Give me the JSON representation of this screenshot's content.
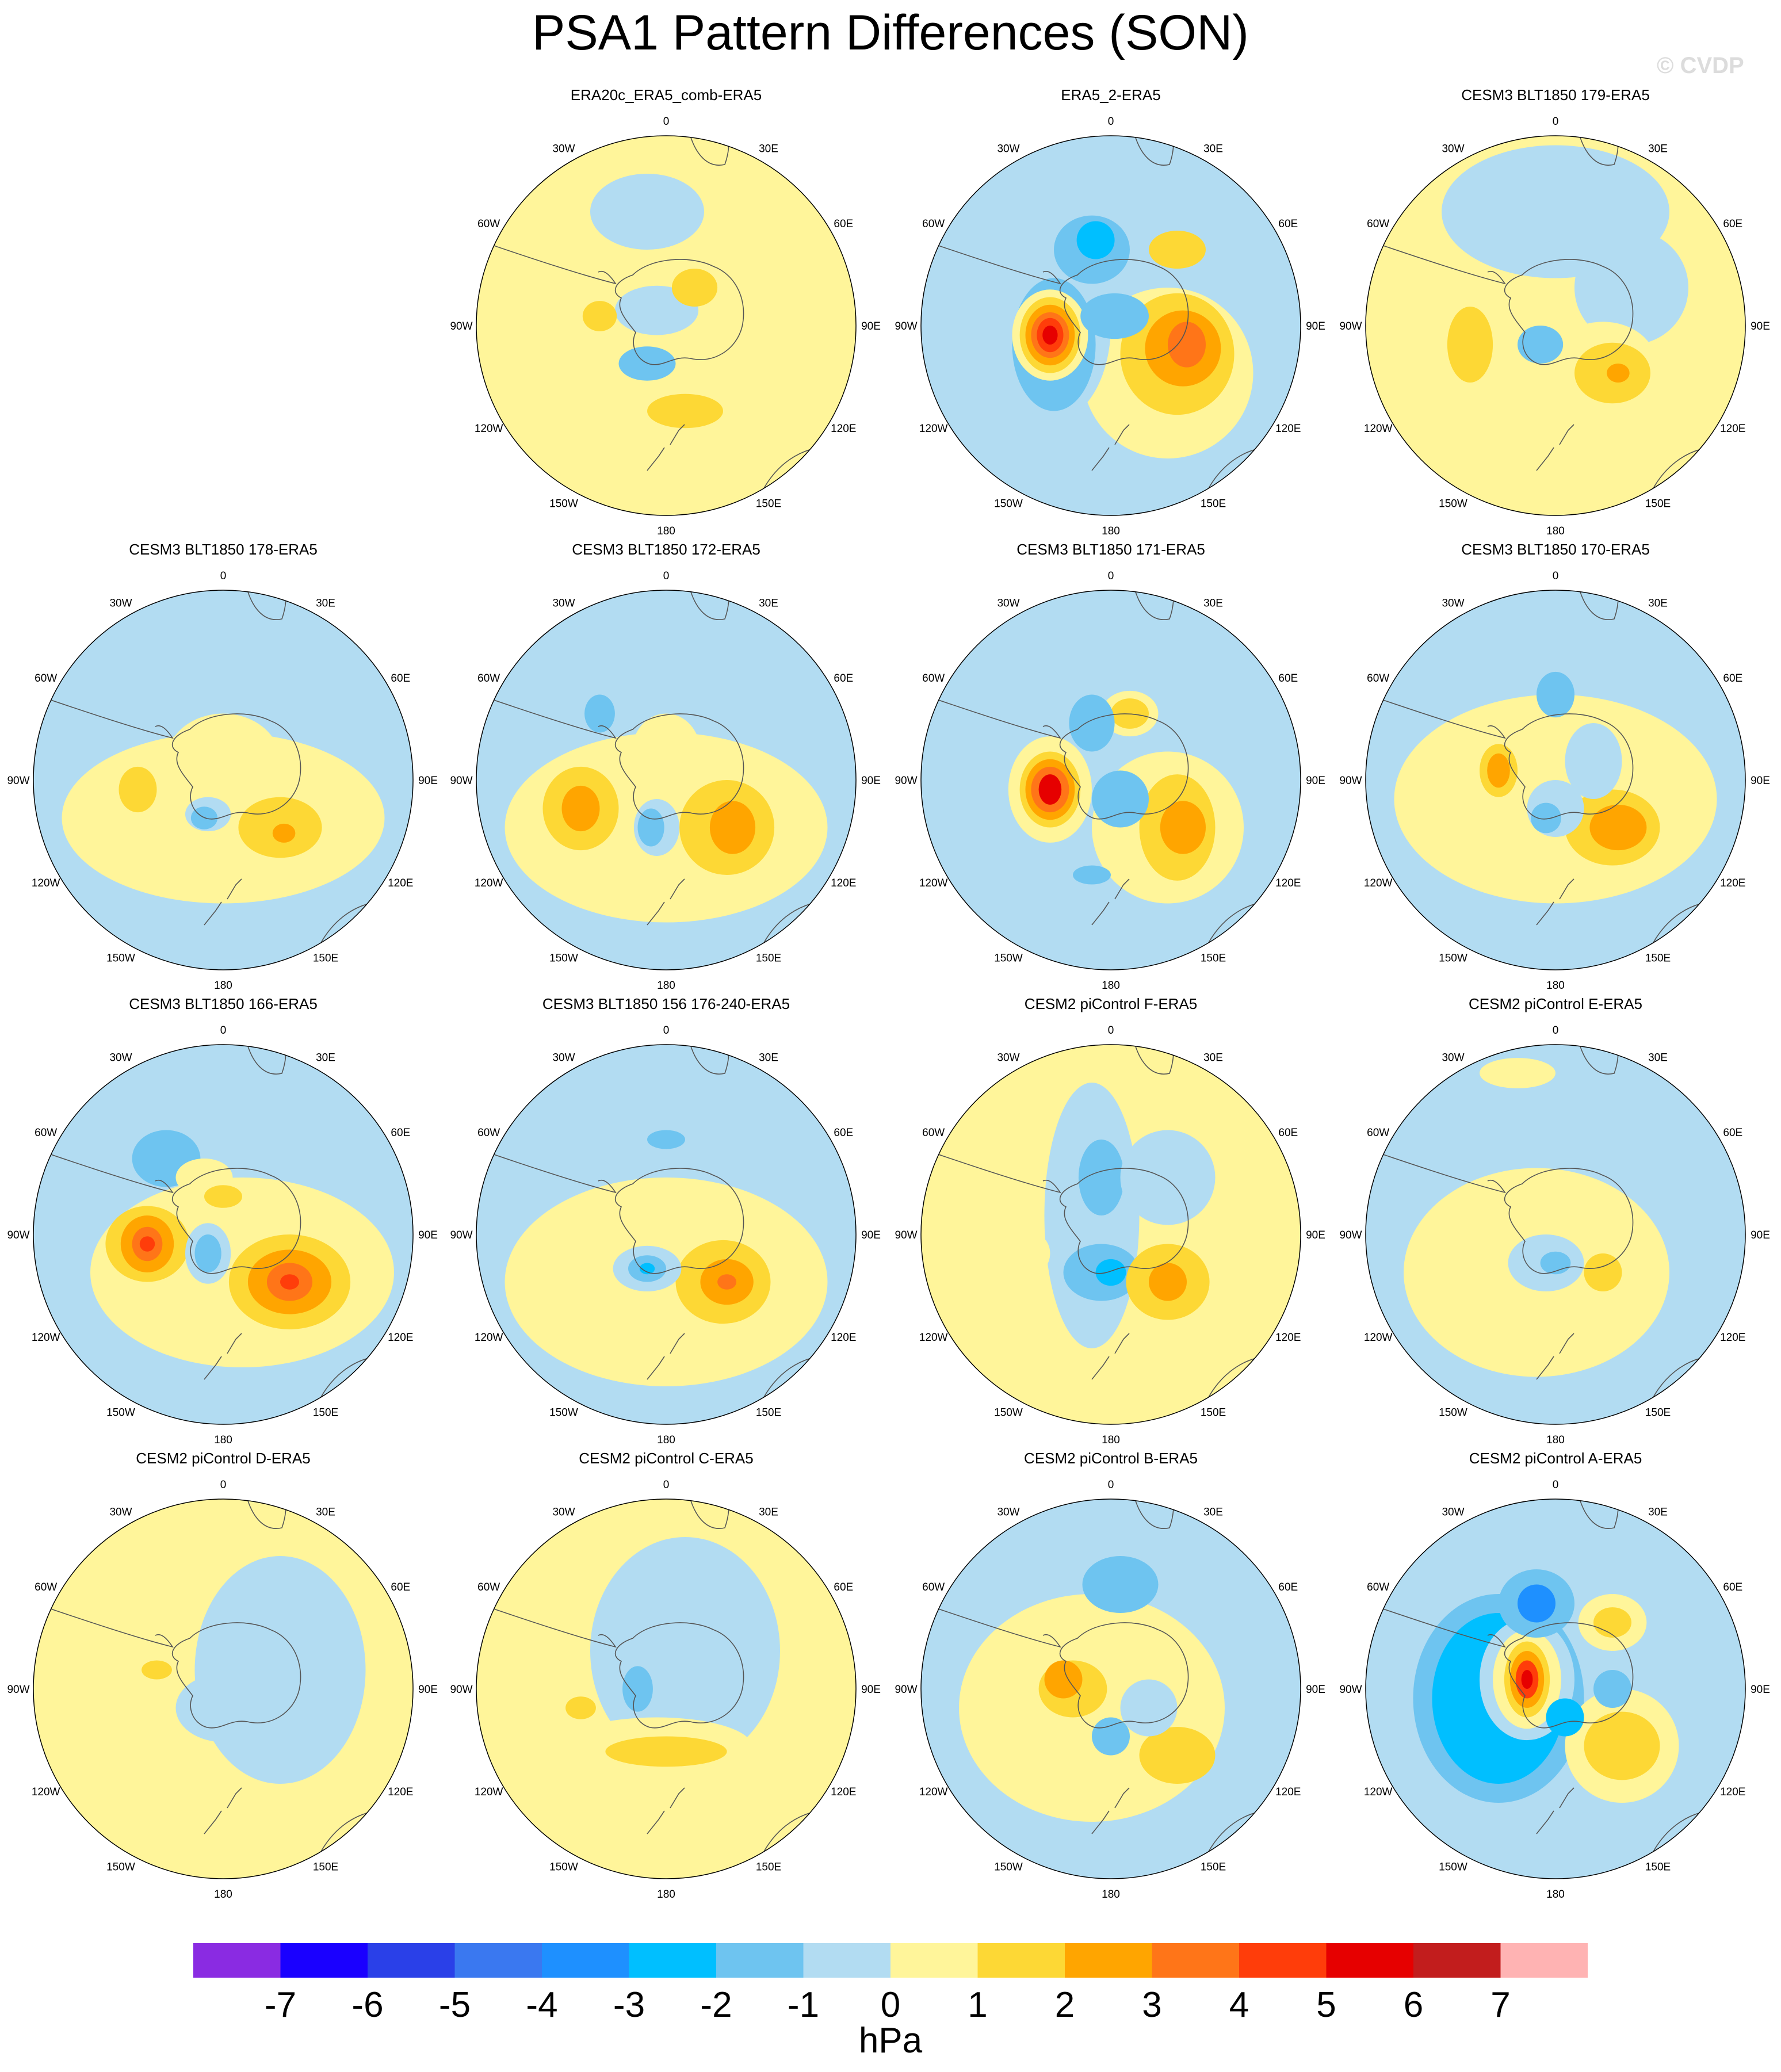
{
  "title": "PSA1 Pattern Differences (SON)",
  "watermark": "© CVDP",
  "units": "hPa",
  "longitude_labels": [
    "0",
    "30E",
    "60E",
    "90E",
    "120E",
    "150E",
    "180",
    "150W",
    "120W",
    "90W",
    "60W",
    "30W"
  ],
  "colorbar": {
    "colors": [
      "#8a2be2",
      "#1a00ff",
      "#2a40e8",
      "#3a78f0",
      "#1e90ff",
      "#00bfff",
      "#6ec4f0",
      "#b2dcf2",
      "#fff59a",
      "#fdd835",
      "#ffa500",
      "#ff7518",
      "#ff3d0a",
      "#e60000",
      "#c21d1d",
      "#ffb3b3"
    ],
    "labels": [
      "-7",
      "-6",
      "-5",
      "-4",
      "-3",
      "-2",
      "-1",
      "0",
      "1",
      "2",
      "3",
      "4",
      "5",
      "6",
      "7"
    ]
  },
  "colors": {
    "ocean_neutral": "#fff59a",
    "coast": "#555555"
  },
  "panels": [
    {
      "title": "ERA20c_ERA5_comb-ERA5",
      "base": "y",
      "blobs": [
        {
          "dx": -0.05,
          "dy": -0.08,
          "rx": 0.22,
          "ry": 0.13,
          "v": -1
        },
        {
          "dx": -0.1,
          "dy": 0.2,
          "rx": 0.15,
          "ry": 0.09,
          "v": -2
        },
        {
          "dx": 0.15,
          "dy": -0.2,
          "rx": 0.12,
          "ry": 0.1,
          "v": 2
        },
        {
          "dx": -0.35,
          "dy": -0.05,
          "rx": 0.09,
          "ry": 0.08,
          "v": 2
        },
        {
          "dx": 0.1,
          "dy": 0.45,
          "rx": 0.2,
          "ry": 0.09,
          "v": 2
        },
        {
          "dx": -0.1,
          "dy": -0.6,
          "rx": 0.3,
          "ry": 0.2,
          "v": -1
        }
      ]
    },
    {
      "title": "ERA5_2-ERA5",
      "base": "b",
      "blobs": [
        {
          "dx": 0.3,
          "dy": 0.25,
          "rx": 0.45,
          "ry": 0.45,
          "v": 1
        },
        {
          "dx": 0.35,
          "dy": 0.15,
          "rx": 0.3,
          "ry": 0.32,
          "v": 2
        },
        {
          "dx": 0.38,
          "dy": 0.12,
          "rx": 0.2,
          "ry": 0.2,
          "v": 3
        },
        {
          "dx": 0.4,
          "dy": 0.1,
          "rx": 0.1,
          "ry": 0.12,
          "v": 4
        },
        {
          "dx": -0.3,
          "dy": 0.0,
          "rx": 0.3,
          "ry": 0.5,
          "v": -1
        },
        {
          "dx": -0.3,
          "dy": 0.1,
          "rx": 0.22,
          "ry": 0.35,
          "v": -2
        },
        {
          "dx": -0.32,
          "dy": 0.05,
          "rx": 0.2,
          "ry": 0.24,
          "v": 1
        },
        {
          "dx": -0.32,
          "dy": 0.05,
          "rx": 0.16,
          "ry": 0.2,
          "v": 2
        },
        {
          "dx": -0.32,
          "dy": 0.05,
          "rx": 0.13,
          "ry": 0.16,
          "v": 3
        },
        {
          "dx": -0.32,
          "dy": 0.05,
          "rx": 0.1,
          "ry": 0.12,
          "v": 4
        },
        {
          "dx": -0.32,
          "dy": 0.05,
          "rx": 0.07,
          "ry": 0.09,
          "v": 5
        },
        {
          "dx": -0.32,
          "dy": 0.05,
          "rx": 0.04,
          "ry": 0.05,
          "v": 6
        },
        {
          "dx": -0.1,
          "dy": -0.4,
          "rx": 0.2,
          "ry": 0.18,
          "v": -2
        },
        {
          "dx": -0.08,
          "dy": -0.45,
          "rx": 0.1,
          "ry": 0.1,
          "v": -3
        },
        {
          "dx": 0.35,
          "dy": -0.4,
          "rx": 0.15,
          "ry": 0.1,
          "v": 2
        },
        {
          "dx": 0.02,
          "dy": -0.05,
          "rx": 0.18,
          "ry": 0.12,
          "v": -2
        }
      ]
    },
    {
      "title": "CESM3 BLT1850 179-ERA5",
      "base": "y",
      "blobs": [
        {
          "dx": 0.0,
          "dy": -0.6,
          "rx": 0.6,
          "ry": 0.35,
          "v": -1
        },
        {
          "dx": 0.4,
          "dy": -0.2,
          "rx": 0.3,
          "ry": 0.3,
          "v": -1
        },
        {
          "dx": 0.25,
          "dy": 0.2,
          "rx": 0.28,
          "ry": 0.22,
          "v": 1
        },
        {
          "dx": 0.3,
          "dy": 0.25,
          "rx": 0.2,
          "ry": 0.16,
          "v": 2
        },
        {
          "dx": 0.33,
          "dy": 0.25,
          "rx": 0.06,
          "ry": 0.05,
          "v": 3
        },
        {
          "dx": -0.08,
          "dy": 0.1,
          "rx": 0.12,
          "ry": 0.1,
          "v": -2
        },
        {
          "dx": -0.45,
          "dy": 0.1,
          "rx": 0.12,
          "ry": 0.2,
          "v": 2
        }
      ]
    },
    {
      "title": "CESM3 BLT1850 178-ERA5",
      "base": "b",
      "blobs": [
        {
          "dx": 0.0,
          "dy": 0.2,
          "rx": 0.85,
          "ry": 0.45,
          "v": 1
        },
        {
          "dx": 0.0,
          "dy": -0.1,
          "rx": 0.3,
          "ry": 0.25,
          "v": 1
        },
        {
          "dx": 0.3,
          "dy": 0.25,
          "rx": 0.22,
          "ry": 0.16,
          "v": 2
        },
        {
          "dx": 0.32,
          "dy": 0.28,
          "rx": 0.06,
          "ry": 0.05,
          "v": 3
        },
        {
          "dx": -0.45,
          "dy": 0.05,
          "rx": 0.1,
          "ry": 0.12,
          "v": 2
        },
        {
          "dx": -0.08,
          "dy": 0.18,
          "rx": 0.12,
          "ry": 0.09,
          "v": -1
        },
        {
          "dx": -0.1,
          "dy": 0.2,
          "rx": 0.07,
          "ry": 0.06,
          "v": -2
        }
      ]
    },
    {
      "title": "CESM3 BLT1850 172-ERA5",
      "base": "b",
      "blobs": [
        {
          "dx": 0.0,
          "dy": 0.25,
          "rx": 0.85,
          "ry": 0.5,
          "v": 1
        },
        {
          "dx": 0.0,
          "dy": -0.15,
          "rx": 0.18,
          "ry": 0.2,
          "v": 1
        },
        {
          "dx": 0.32,
          "dy": 0.25,
          "rx": 0.25,
          "ry": 0.25,
          "v": 2
        },
        {
          "dx": 0.35,
          "dy": 0.25,
          "rx": 0.12,
          "ry": 0.14,
          "v": 3
        },
        {
          "dx": -0.45,
          "dy": 0.15,
          "rx": 0.2,
          "ry": 0.22,
          "v": 2
        },
        {
          "dx": -0.45,
          "dy": 0.15,
          "rx": 0.1,
          "ry": 0.12,
          "v": 3
        },
        {
          "dx": -0.05,
          "dy": 0.25,
          "rx": 0.12,
          "ry": 0.15,
          "v": -1
        },
        {
          "dx": -0.08,
          "dy": 0.25,
          "rx": 0.07,
          "ry": 0.1,
          "v": -2
        },
        {
          "dx": -0.35,
          "dy": -0.35,
          "rx": 0.08,
          "ry": 0.1,
          "v": -2
        }
      ]
    },
    {
      "title": "CESM3 BLT1850 171-ERA5",
      "base": "b",
      "blobs": [
        {
          "dx": 0.3,
          "dy": 0.25,
          "rx": 0.4,
          "ry": 0.4,
          "v": 1
        },
        {
          "dx": 0.35,
          "dy": 0.25,
          "rx": 0.2,
          "ry": 0.28,
          "v": 2
        },
        {
          "dx": 0.38,
          "dy": 0.25,
          "rx": 0.12,
          "ry": 0.14,
          "v": 3
        },
        {
          "dx": -0.32,
          "dy": 0.05,
          "rx": 0.22,
          "ry": 0.28,
          "v": 1
        },
        {
          "dx": -0.32,
          "dy": 0.05,
          "rx": 0.16,
          "ry": 0.2,
          "v": 2
        },
        {
          "dx": -0.32,
          "dy": 0.05,
          "rx": 0.13,
          "ry": 0.16,
          "v": 3
        },
        {
          "dx": -0.32,
          "dy": 0.05,
          "rx": 0.1,
          "ry": 0.12,
          "v": 4
        },
        {
          "dx": -0.32,
          "dy": 0.05,
          "rx": 0.06,
          "ry": 0.08,
          "v": 6
        },
        {
          "dx": 0.1,
          "dy": -0.35,
          "rx": 0.15,
          "ry": 0.12,
          "v": 1
        },
        {
          "dx": 0.1,
          "dy": -0.35,
          "rx": 0.1,
          "ry": 0.08,
          "v": 2
        },
        {
          "dx": -0.1,
          "dy": -0.3,
          "rx": 0.12,
          "ry": 0.15,
          "v": -2
        },
        {
          "dx": 0.05,
          "dy": 0.1,
          "rx": 0.15,
          "ry": 0.15,
          "v": -2
        },
        {
          "dx": -0.1,
          "dy": 0.5,
          "rx": 0.1,
          "ry": 0.05,
          "v": -2
        }
      ]
    },
    {
      "title": "CESM3 BLT1850 170-ERA5",
      "base": "b",
      "blobs": [
        {
          "dx": 0.0,
          "dy": 0.1,
          "rx": 0.85,
          "ry": 0.55,
          "v": 1
        },
        {
          "dx": 0.3,
          "dy": 0.25,
          "rx": 0.25,
          "ry": 0.2,
          "v": 2
        },
        {
          "dx": 0.33,
          "dy": 0.25,
          "rx": 0.15,
          "ry": 0.12,
          "v": 3
        },
        {
          "dx": -0.3,
          "dy": -0.05,
          "rx": 0.15,
          "ry": 0.2,
          "v": 1
        },
        {
          "dx": -0.3,
          "dy": -0.05,
          "rx": 0.1,
          "ry": 0.14,
          "v": 2
        },
        {
          "dx": -0.3,
          "dy": -0.05,
          "rx": 0.06,
          "ry": 0.09,
          "v": 3
        },
        {
          "dx": 0.0,
          "dy": 0.15,
          "rx": 0.15,
          "ry": 0.15,
          "v": -1
        },
        {
          "dx": -0.05,
          "dy": 0.2,
          "rx": 0.08,
          "ry": 0.08,
          "v": -2
        },
        {
          "dx": 0.0,
          "dy": -0.45,
          "rx": 0.1,
          "ry": 0.12,
          "v": -2
        },
        {
          "dx": 0.2,
          "dy": -0.1,
          "rx": 0.15,
          "ry": 0.2,
          "v": -1
        }
      ]
    },
    {
      "title": "CESM3 BLT1850 166-ERA5",
      "base": "b",
      "blobs": [
        {
          "dx": 0.1,
          "dy": 0.2,
          "rx": 0.8,
          "ry": 0.5,
          "v": 1
        },
        {
          "dx": 0.35,
          "dy": 0.25,
          "rx": 0.32,
          "ry": 0.25,
          "v": 2
        },
        {
          "dx": 0.35,
          "dy": 0.25,
          "rx": 0.22,
          "ry": 0.17,
          "v": 3
        },
        {
          "dx": 0.35,
          "dy": 0.25,
          "rx": 0.12,
          "ry": 0.1,
          "v": 4
        },
        {
          "dx": 0.35,
          "dy": 0.25,
          "rx": 0.05,
          "ry": 0.04,
          "v": 5
        },
        {
          "dx": -0.4,
          "dy": 0.05,
          "rx": 0.22,
          "ry": 0.2,
          "v": 2
        },
        {
          "dx": -0.4,
          "dy": 0.05,
          "rx": 0.14,
          "ry": 0.15,
          "v": 3
        },
        {
          "dx": -0.4,
          "dy": 0.05,
          "rx": 0.08,
          "ry": 0.09,
          "v": 4
        },
        {
          "dx": -0.4,
          "dy": 0.05,
          "rx": 0.04,
          "ry": 0.04,
          "v": 5
        },
        {
          "dx": -0.08,
          "dy": 0.1,
          "rx": 0.12,
          "ry": 0.16,
          "v": -1
        },
        {
          "dx": -0.08,
          "dy": 0.1,
          "rx": 0.07,
          "ry": 0.1,
          "v": -2
        },
        {
          "dx": -0.3,
          "dy": -0.4,
          "rx": 0.18,
          "ry": 0.15,
          "v": -2
        },
        {
          "dx": -0.1,
          "dy": -0.3,
          "rx": 0.15,
          "ry": 0.1,
          "v": 1
        },
        {
          "dx": 0.0,
          "dy": -0.2,
          "rx": 0.1,
          "ry": 0.06,
          "v": 2
        }
      ]
    },
    {
      "title": "CESM3 BLT1850 156 176-240-ERA5",
      "base": "b",
      "blobs": [
        {
          "dx": 0.0,
          "dy": 0.25,
          "rx": 0.85,
          "ry": 0.55,
          "v": 1
        },
        {
          "dx": 0.3,
          "dy": 0.25,
          "rx": 0.25,
          "ry": 0.22,
          "v": 2
        },
        {
          "dx": 0.32,
          "dy": 0.25,
          "rx": 0.14,
          "ry": 0.12,
          "v": 3
        },
        {
          "dx": 0.32,
          "dy": 0.25,
          "rx": 0.05,
          "ry": 0.04,
          "v": 4
        },
        {
          "dx": -0.1,
          "dy": 0.18,
          "rx": 0.18,
          "ry": 0.12,
          "v": -1
        },
        {
          "dx": -0.1,
          "dy": 0.18,
          "rx": 0.1,
          "ry": 0.07,
          "v": -2
        },
        {
          "dx": -0.1,
          "dy": 0.18,
          "rx": 0.04,
          "ry": 0.03,
          "v": -3
        },
        {
          "dx": 0.0,
          "dy": -0.5,
          "rx": 0.1,
          "ry": 0.05,
          "v": -2
        },
        {
          "dx": -0.2,
          "dy": -0.2,
          "rx": 0.1,
          "ry": 0.08,
          "v": 1
        }
      ]
    },
    {
      "title": "CESM2 piControl F-ERA5",
      "base": "y",
      "blobs": [
        {
          "dx": -0.1,
          "dy": -0.1,
          "rx": 0.25,
          "ry": 0.7,
          "v": -1
        },
        {
          "dx": -0.05,
          "dy": -0.3,
          "rx": 0.12,
          "ry": 0.2,
          "v": -2
        },
        {
          "dx": -0.05,
          "dy": 0.2,
          "rx": 0.2,
          "ry": 0.15,
          "v": -2
        },
        {
          "dx": 0.0,
          "dy": 0.2,
          "rx": 0.08,
          "ry": 0.07,
          "v": -3
        },
        {
          "dx": 0.3,
          "dy": -0.3,
          "rx": 0.25,
          "ry": 0.25,
          "v": -1
        },
        {
          "dx": 0.3,
          "dy": 0.25,
          "rx": 0.22,
          "ry": 0.2,
          "v": 2
        },
        {
          "dx": 0.3,
          "dy": 0.25,
          "rx": 0.1,
          "ry": 0.1,
          "v": 3
        },
        {
          "dx": -0.4,
          "dy": 0.1,
          "rx": 0.08,
          "ry": 0.1,
          "v": 1
        }
      ]
    },
    {
      "title": "CESM2 piControl E-ERA5",
      "base": "b",
      "blobs": [
        {
          "dx": -0.1,
          "dy": 0.2,
          "rx": 0.7,
          "ry": 0.55,
          "v": 1
        },
        {
          "dx": -0.05,
          "dy": 0.15,
          "rx": 0.2,
          "ry": 0.15,
          "v": -1
        },
        {
          "dx": 0.0,
          "dy": 0.15,
          "rx": 0.08,
          "ry": 0.06,
          "v": -2
        },
        {
          "dx": 0.25,
          "dy": 0.2,
          "rx": 0.1,
          "ry": 0.1,
          "v": 2
        },
        {
          "dx": -0.2,
          "dy": -0.85,
          "rx": 0.2,
          "ry": 0.08,
          "v": 1
        }
      ]
    },
    {
      "title": "CESM2 piControl D-ERA5",
      "base": "y",
      "blobs": [
        {
          "dx": 0.3,
          "dy": -0.1,
          "rx": 0.45,
          "ry": 0.6,
          "v": -1
        },
        {
          "dx": 0.0,
          "dy": 0.1,
          "rx": 0.25,
          "ry": 0.18,
          "v": -1
        },
        {
          "dx": -0.3,
          "dy": -0.15,
          "rx": 0.15,
          "ry": 0.12,
          "v": 1
        },
        {
          "dx": -0.35,
          "dy": -0.1,
          "rx": 0.08,
          "ry": 0.05,
          "v": 2
        },
        {
          "dx": 0.05,
          "dy": 0.55,
          "rx": 0.1,
          "ry": 0.05,
          "v": 1
        }
      ]
    },
    {
      "title": "CESM2 piControl C-ERA5",
      "base": "y",
      "blobs": [
        {
          "dx": 0.1,
          "dy": -0.2,
          "rx": 0.5,
          "ry": 0.6,
          "v": -1
        },
        {
          "dx": -0.1,
          "dy": 0.0,
          "rx": 0.15,
          "ry": 0.18,
          "v": -1
        },
        {
          "dx": -0.15,
          "dy": 0.0,
          "rx": 0.08,
          "ry": 0.12,
          "v": -2
        },
        {
          "dx": -0.05,
          "dy": 0.3,
          "rx": 0.5,
          "ry": 0.15,
          "v": 1
        },
        {
          "dx": 0.0,
          "dy": 0.33,
          "rx": 0.32,
          "ry": 0.08,
          "v": 2
        },
        {
          "dx": -0.45,
          "dy": 0.1,
          "rx": 0.08,
          "ry": 0.06,
          "v": 2
        }
      ]
    },
    {
      "title": "CESM2 piControl B-ERA5",
      "base": "b",
      "blobs": [
        {
          "dx": -0.1,
          "dy": 0.1,
          "rx": 0.7,
          "ry": 0.6,
          "v": 1
        },
        {
          "dx": 0.05,
          "dy": -0.55,
          "rx": 0.2,
          "ry": 0.15,
          "v": -2
        },
        {
          "dx": -0.2,
          "dy": 0.0,
          "rx": 0.18,
          "ry": 0.15,
          "v": 2
        },
        {
          "dx": -0.25,
          "dy": -0.05,
          "rx": 0.1,
          "ry": 0.1,
          "v": 3
        },
        {
          "dx": 0.0,
          "dy": 0.25,
          "rx": 0.1,
          "ry": 0.1,
          "v": -2
        },
        {
          "dx": 0.35,
          "dy": 0.35,
          "rx": 0.2,
          "ry": 0.15,
          "v": 2
        },
        {
          "dx": 0.2,
          "dy": 0.1,
          "rx": 0.15,
          "ry": 0.15,
          "v": -1
        }
      ]
    },
    {
      "title": "CESM2 piControl A-ERA5",
      "base": "b",
      "blobs": [
        {
          "dx": -0.3,
          "dy": 0.05,
          "rx": 0.45,
          "ry": 0.55,
          "v": -2
        },
        {
          "dx": -0.3,
          "dy": 0.05,
          "rx": 0.35,
          "ry": 0.45,
          "v": -3
        },
        {
          "dx": -0.15,
          "dy": -0.05,
          "rx": 0.25,
          "ry": 0.32,
          "v": -1
        },
        {
          "dx": -0.15,
          "dy": -0.05,
          "rx": 0.18,
          "ry": 0.26,
          "v": 1
        },
        {
          "dx": -0.15,
          "dy": -0.05,
          "rx": 0.12,
          "ry": 0.2,
          "v": 2
        },
        {
          "dx": -0.15,
          "dy": -0.05,
          "rx": 0.09,
          "ry": 0.15,
          "v": 3
        },
        {
          "dx": -0.15,
          "dy": -0.05,
          "rx": 0.06,
          "ry": 0.1,
          "v": 5
        },
        {
          "dx": -0.15,
          "dy": -0.05,
          "rx": 0.03,
          "ry": 0.05,
          "v": 6
        },
        {
          "dx": -0.1,
          "dy": -0.45,
          "rx": 0.2,
          "ry": 0.18,
          "v": -2
        },
        {
          "dx": -0.1,
          "dy": -0.45,
          "rx": 0.1,
          "ry": 0.1,
          "v": -4
        },
        {
          "dx": 0.3,
          "dy": -0.35,
          "rx": 0.18,
          "ry": 0.15,
          "v": 1
        },
        {
          "dx": 0.3,
          "dy": -0.35,
          "rx": 0.1,
          "ry": 0.08,
          "v": 2
        },
        {
          "dx": 0.35,
          "dy": 0.3,
          "rx": 0.3,
          "ry": 0.3,
          "v": 1
        },
        {
          "dx": 0.35,
          "dy": 0.3,
          "rx": 0.2,
          "ry": 0.18,
          "v": 2
        },
        {
          "dx": 0.3,
          "dy": 0.0,
          "rx": 0.1,
          "ry": 0.1,
          "v": -2
        },
        {
          "dx": 0.05,
          "dy": 0.15,
          "rx": 0.1,
          "ry": 0.1,
          "v": -3
        }
      ]
    }
  ]
}
